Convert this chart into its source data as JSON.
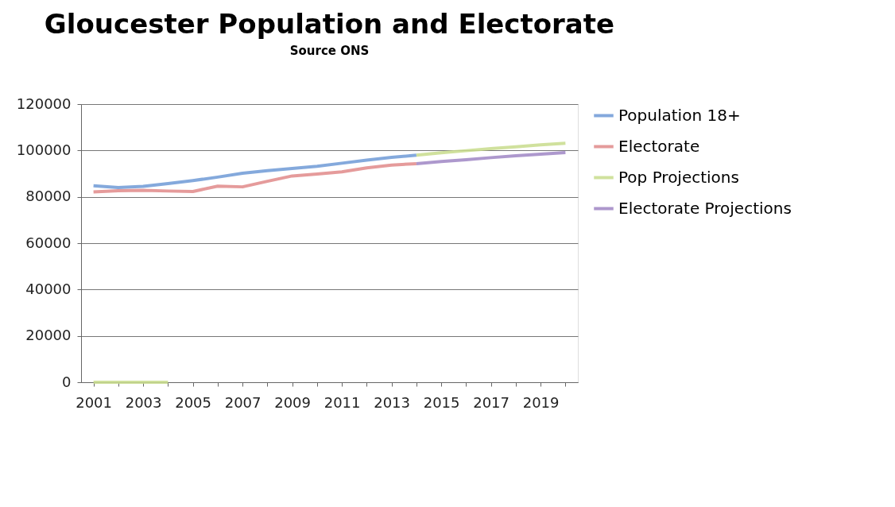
{
  "chart_data": {
    "type": "line",
    "title": "Gloucester Population and Electorate",
    "subtitle": "Source ONS",
    "categories": [
      "2001",
      null,
      "2003",
      null,
      "2005",
      null,
      "2007",
      null,
      "2009",
      null,
      "2011",
      null,
      "2013",
      null,
      "2015",
      null,
      "2017",
      null,
      "2019",
      null
    ],
    "series": [
      {
        "name": "Population 18+",
        "color": "#6f9ad6",
        "values": [
          84800,
          84000,
          84500,
          85700,
          87000,
          88500,
          90200,
          91300,
          92200,
          93200,
          94500,
          95800,
          97000,
          98000,
          null,
          null,
          null,
          null,
          null,
          null
        ]
      },
      {
        "name": "Electorate",
        "color": "#e08a8a",
        "values": [
          82100,
          82600,
          82800,
          82500,
          82300,
          84600,
          84300,
          86700,
          89000,
          89800,
          90800,
          92500,
          93700,
          94300,
          null,
          null,
          null,
          null,
          null,
          null
        ]
      },
      {
        "name": "Pop Projections",
        "color": "#c8dc8c",
        "values": [
          0,
          0,
          0,
          0,
          null,
          null,
          null,
          null,
          null,
          null,
          null,
          null,
          null,
          98000,
          99000,
          99900,
          100800,
          101600,
          102400,
          103100
        ]
      },
      {
        "name": "Electorate Projections",
        "color": "#9f86c4",
        "values": [
          null,
          null,
          null,
          null,
          null,
          null,
          null,
          null,
          null,
          null,
          null,
          null,
          null,
          94300,
          95200,
          96000,
          96900,
          97700,
          98400,
          99100
        ]
      }
    ],
    "ylim": [
      0,
      120000
    ],
    "yticks": [
      0,
      20000,
      40000,
      60000,
      80000,
      100000,
      120000
    ],
    "grid": "y",
    "legend": "right",
    "marker": "none",
    "line_style": "solid"
  }
}
